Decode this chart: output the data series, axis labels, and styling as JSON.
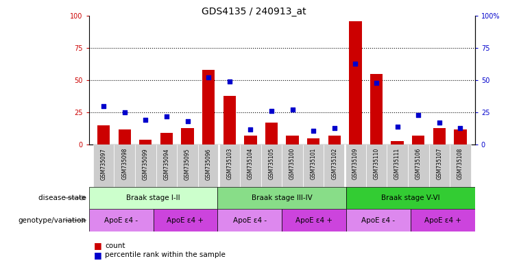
{
  "title": "GDS4135 / 240913_at",
  "samples": [
    "GSM735097",
    "GSM735098",
    "GSM735099",
    "GSM735094",
    "GSM735095",
    "GSM735096",
    "GSM735103",
    "GSM735104",
    "GSM735105",
    "GSM735100",
    "GSM735101",
    "GSM735102",
    "GSM735109",
    "GSM735110",
    "GSM735111",
    "GSM735106",
    "GSM735107",
    "GSM735108"
  ],
  "counts": [
    15,
    12,
    4,
    9,
    13,
    58,
    38,
    7,
    17,
    7,
    5,
    7,
    96,
    55,
    3,
    7,
    13,
    12
  ],
  "percentiles": [
    30,
    25,
    19,
    22,
    18,
    52,
    49,
    12,
    26,
    27,
    11,
    13,
    63,
    48,
    14,
    23,
    17,
    13
  ],
  "bar_color": "#cc0000",
  "percentile_color": "#0000cc",
  "ylim": [
    0,
    100
  ],
  "yticks": [
    0,
    25,
    50,
    75,
    100
  ],
  "disease_states": [
    {
      "label": "Braak stage I-II",
      "start": 0,
      "end": 6,
      "color": "#ccffcc"
    },
    {
      "label": "Braak stage III-IV",
      "start": 6,
      "end": 12,
      "color": "#88dd88"
    },
    {
      "label": "Braak stage V-VI",
      "start": 12,
      "end": 18,
      "color": "#33cc33"
    }
  ],
  "genotypes": [
    {
      "label": "ApoE ε4 -",
      "start": 0,
      "end": 3,
      "color": "#dd88ee"
    },
    {
      "label": "ApoE ε4 +",
      "start": 3,
      "end": 6,
      "color": "#cc44dd"
    },
    {
      "label": "ApoE ε4 -",
      "start": 6,
      "end": 9,
      "color": "#dd88ee"
    },
    {
      "label": "ApoE ε4 +",
      "start": 9,
      "end": 12,
      "color": "#cc44dd"
    },
    {
      "label": "ApoE ε4 -",
      "start": 12,
      "end": 15,
      "color": "#dd88ee"
    },
    {
      "label": "ApoE ε4 +",
      "start": 15,
      "end": 18,
      "color": "#cc44dd"
    }
  ],
  "legend_count_label": "count",
  "legend_percentile_label": "percentile rank within the sample",
  "disease_state_label": "disease state",
  "genotype_label": "genotype/variation",
  "left_yaxis_color": "#cc0000",
  "right_yaxis_color": "#0000cc",
  "xtick_bg_color": "#cccccc",
  "separator_color": "#000000"
}
